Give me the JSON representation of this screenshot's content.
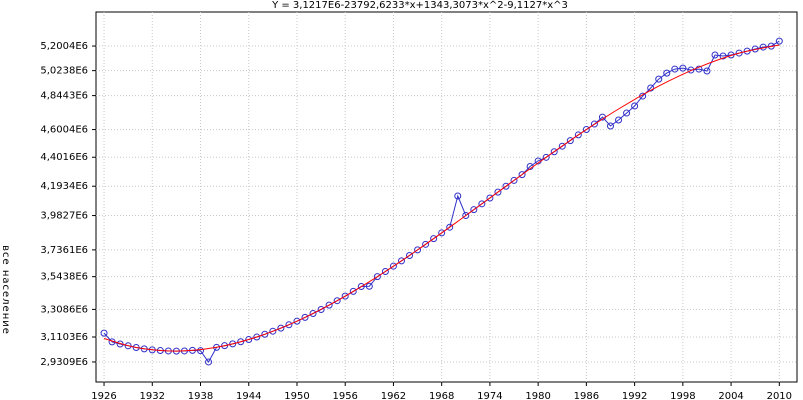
{
  "chart_data": {
    "type": "line",
    "title": "Y = 3,1217E6-23792,6233*x+1343,3073*x^2-9,1127*x^3",
    "y_label": "все население",
    "x": [
      1926,
      1927,
      1928,
      1929,
      1930,
      1931,
      1932,
      1933,
      1934,
      1935,
      1936,
      1937,
      1938,
      1939,
      1940,
      1941,
      1942,
      1943,
      1944,
      1945,
      1946,
      1947,
      1948,
      1949,
      1950,
      1951,
      1952,
      1953,
      1954,
      1955,
      1956,
      1957,
      1958,
      1959,
      1960,
      1961,
      1962,
      1963,
      1964,
      1965,
      1966,
      1967,
      1968,
      1969,
      1970,
      1971,
      1972,
      1973,
      1974,
      1975,
      1976,
      1977,
      1978,
      1979,
      1980,
      1981,
      1982,
      1983,
      1984,
      1985,
      1986,
      1987,
      1988,
      1989,
      1990,
      1991,
      1992,
      1993,
      1994,
      1995,
      1996,
      1997,
      1998,
      1999,
      2000,
      2001,
      2002,
      2003,
      2004,
      2005,
      2006,
      2007,
      2008,
      2009,
      2010
    ],
    "series": [
      {
        "color": "#3030c8",
        "markers": true,
        "values": [
          3138000,
          3075000,
          3060000,
          3047000,
          3035000,
          3025000,
          3018000,
          3013000,
          3010000,
          3009000,
          3010000,
          3014000,
          3012000,
          2931000,
          3036000,
          3048000,
          3061000,
          3076000,
          3092000,
          3110000,
          3130000,
          3152000,
          3174000,
          3198000,
          3224000,
          3251000,
          3279000,
          3308000,
          3339000,
          3371000,
          3404000,
          3438000,
          3473000,
          3475000,
          3544000,
          3581000,
          3619000,
          3657000,
          3696000,
          3736000,
          3776000,
          3817000,
          3858000,
          3899000,
          4123000,
          3983000,
          4025000,
          4067000,
          4109000,
          4151000,
          4193000,
          4235000,
          4277000,
          4335000,
          4375000,
          4401000,
          4441000,
          4481000,
          4521000,
          4562000,
          4601000,
          4640000,
          4690000,
          4626000,
          4669000,
          4719000,
          4770000,
          4841000,
          4899000,
          4963000,
          5006000,
          5035000,
          5042000,
          5028000,
          5035000,
          5021000,
          5136000,
          5129000,
          5136000,
          5150000,
          5164000,
          5179000,
          5193000,
          5200000,
          5236000
        ]
      },
      {
        "color": "#ff0000",
        "markers": false,
        "x": [
          1926,
          1930,
          1935,
          1940,
          1945,
          1950,
          1955,
          1960,
          1965,
          1970,
          1975,
          1980,
          1985,
          1990,
          1995,
          2000,
          2005,
          2010
        ],
        "values": [
          3099200,
          3035200,
          3009000,
          3036300,
          3110300,
          3224100,
          3370900,
          3543800,
          3736100,
          3940800,
          4151300,
          4360400,
          4561700,
          4748100,
          4912700,
          5048800,
          5149700,
          5208000
        ]
      }
    ],
    "xlim": [
      1925,
      2012.2
    ],
    "ylim": [
      2787000,
      5445000
    ],
    "xticks": [
      1926,
      1932,
      1938,
      1944,
      1950,
      1956,
      1962,
      1968,
      1974,
      1980,
      1986,
      1992,
      1998,
      2004,
      2010
    ],
    "yticks": [
      {
        "value": 2930900,
        "label": "2,9309E6"
      },
      {
        "value": 3110300,
        "label": "3,1103E6"
      },
      {
        "value": 3308600,
        "label": "3,3086E6"
      },
      {
        "value": 3543800,
        "label": "3,5438E6"
      },
      {
        "value": 3736100,
        "label": "3,7361E6"
      },
      {
        "value": 3982700,
        "label": "3,9827E6"
      },
      {
        "value": 4193400,
        "label": "4,1934E6"
      },
      {
        "value": 4401600,
        "label": "4,4016E6"
      },
      {
        "value": 4600400,
        "label": "4,6004E6"
      },
      {
        "value": 4844300,
        "label": "4,8443E6"
      },
      {
        "value": 5023800,
        "label": "5,0238E6"
      },
      {
        "value": 5200400,
        "label": "5,2004E6"
      }
    ],
    "grid": true
  }
}
